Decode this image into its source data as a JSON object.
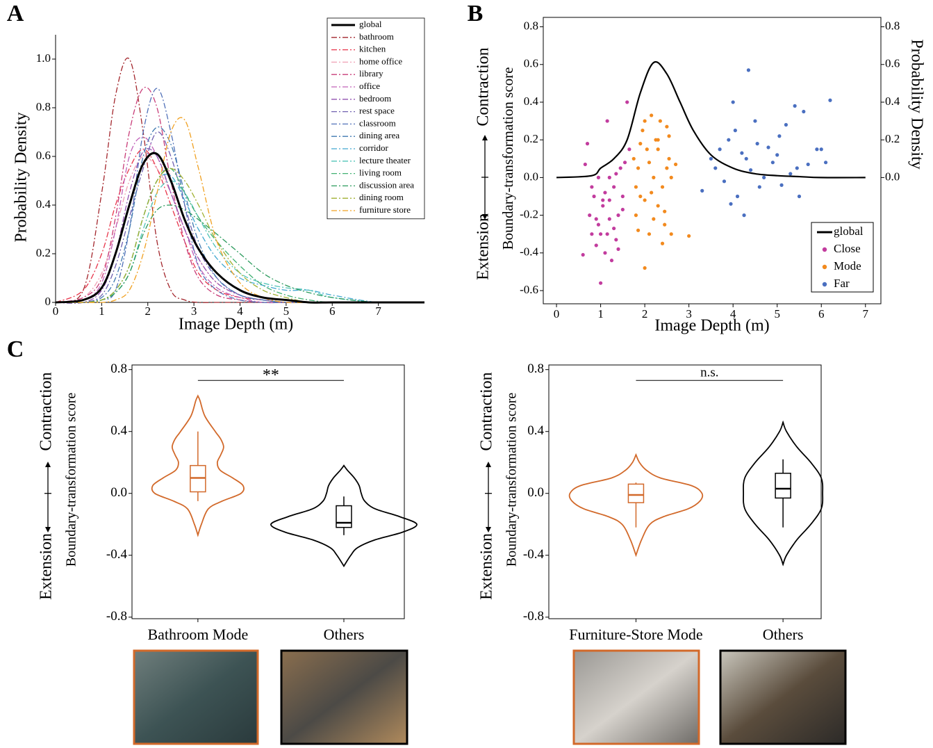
{
  "chart_data": [
    {
      "type": "line",
      "panel_label": "A",
      "xlabel": "Image Depth (m)",
      "ylabel": "Probability Density",
      "xlim": [
        0,
        8
      ],
      "ylim": [
        0,
        1.1
      ],
      "xticks": [
        0,
        1,
        2,
        3,
        4,
        5,
        6,
        7
      ],
      "yticks": [
        0,
        0.2,
        0.4,
        0.6,
        0.8,
        {
          "value": 1,
          "label": "1.0"
        }
      ],
      "legend": "upper right",
      "x": [
        0,
        0.6,
        1,
        1.3,
        1.6,
        1.9,
        2.2,
        2.5,
        2.8,
        3.1,
        3.5,
        4,
        4.5,
        5,
        5.5,
        6,
        7,
        8
      ],
      "series": [
        {
          "name": "global",
          "color": "#000000",
          "style": "solid",
          "values": [
            0,
            0.01,
            0.06,
            0.2,
            0.4,
            0.57,
            0.61,
            0.5,
            0.34,
            0.22,
            0.12,
            0.05,
            0.02,
            0.01,
            0,
            0,
            0,
            0
          ]
        },
        {
          "name": "bathroom",
          "color": "#a3262c",
          "style": "dashdot",
          "values": [
            0,
            0.05,
            0.45,
            0.85,
            1.0,
            0.7,
            0.25,
            0.05,
            0.01,
            0,
            0,
            0,
            0,
            0,
            0,
            0,
            0,
            0
          ]
        },
        {
          "name": "kitchen",
          "color": "#e8344a",
          "style": "dashdot",
          "values": [
            0,
            0.05,
            0.2,
            0.4,
            0.55,
            0.63,
            0.55,
            0.4,
            0.25,
            0.12,
            0.05,
            0.02,
            0.01,
            0,
            0,
            0,
            0,
            0
          ]
        },
        {
          "name": "home office",
          "color": "#f0a0b4",
          "style": "dashdot",
          "values": [
            0,
            0.02,
            0.12,
            0.3,
            0.5,
            0.6,
            0.55,
            0.45,
            0.3,
            0.18,
            0.08,
            0.03,
            0.01,
            0,
            0,
            0,
            0,
            0
          ]
        },
        {
          "name": "library",
          "color": "#c83c78",
          "style": "dashdot",
          "values": [
            0,
            0.02,
            0.1,
            0.35,
            0.7,
            0.88,
            0.8,
            0.5,
            0.25,
            0.1,
            0.03,
            0.01,
            0,
            0,
            0,
            0,
            0,
            0
          ]
        },
        {
          "name": "office",
          "color": "#c060b8",
          "style": "dashdot",
          "values": [
            0,
            0.01,
            0.08,
            0.3,
            0.6,
            0.68,
            0.6,
            0.45,
            0.3,
            0.15,
            0.06,
            0.02,
            0,
            0,
            0,
            0,
            0,
            0
          ]
        },
        {
          "name": "bedroom",
          "color": "#9050b0",
          "style": "dashdot",
          "values": [
            0,
            0,
            0.05,
            0.2,
            0.45,
            0.62,
            0.6,
            0.45,
            0.3,
            0.18,
            0.08,
            0.03,
            0.01,
            0,
            0,
            0,
            0,
            0
          ]
        },
        {
          "name": "rest space",
          "color": "#7060b0",
          "style": "dashdot",
          "values": [
            0,
            0,
            0.03,
            0.15,
            0.35,
            0.55,
            0.7,
            0.6,
            0.4,
            0.22,
            0.1,
            0.03,
            0.01,
            0,
            0,
            0,
            0,
            0
          ]
        },
        {
          "name": "classroom",
          "color": "#5070b8",
          "style": "dashdot",
          "values": [
            0,
            0,
            0.01,
            0.05,
            0.3,
            0.7,
            0.88,
            0.7,
            0.4,
            0.15,
            0.05,
            0.01,
            0,
            0,
            0,
            0,
            0,
            0
          ]
        },
        {
          "name": "dining area",
          "color": "#3f78b0",
          "style": "dashdot",
          "values": [
            0,
            0,
            0.02,
            0.1,
            0.3,
            0.6,
            0.72,
            0.65,
            0.45,
            0.25,
            0.1,
            0.03,
            0.01,
            0,
            0,
            0,
            0,
            0
          ]
        },
        {
          "name": "corridor",
          "color": "#40a8d0",
          "style": "dashdot",
          "values": [
            0,
            0,
            0.01,
            0.05,
            0.15,
            0.35,
            0.5,
            0.52,
            0.42,
            0.3,
            0.18,
            0.1,
            0.07,
            0.05,
            0.05,
            0.03,
            0,
            0
          ]
        },
        {
          "name": "lecture theater",
          "color": "#50c4b8",
          "style": "dashdot",
          "values": [
            0,
            0,
            0.01,
            0.04,
            0.12,
            0.3,
            0.45,
            0.5,
            0.45,
            0.35,
            0.22,
            0.12,
            0.08,
            0.06,
            0.05,
            0.02,
            0,
            0
          ]
        },
        {
          "name": "living room",
          "color": "#40b070",
          "style": "dashdot",
          "values": [
            0,
            0,
            0.01,
            0.05,
            0.15,
            0.35,
            0.5,
            0.55,
            0.45,
            0.35,
            0.25,
            0.15,
            0.07,
            0.03,
            0.01,
            0,
            0,
            0
          ]
        },
        {
          "name": "discussion area",
          "color": "#2a9a5c",
          "style": "dashdot",
          "values": [
            0,
            0,
            0.01,
            0.04,
            0.12,
            0.28,
            0.38,
            0.4,
            0.38,
            0.34,
            0.28,
            0.2,
            0.12,
            0.07,
            0.04,
            0.02,
            0,
            0
          ]
        },
        {
          "name": "dining room",
          "color": "#a0b030",
          "style": "dashdot",
          "values": [
            0,
            0,
            0.01,
            0.05,
            0.15,
            0.35,
            0.5,
            0.55,
            0.5,
            0.4,
            0.25,
            0.12,
            0.05,
            0.02,
            0,
            0,
            0,
            0
          ]
        },
        {
          "name": "furniture store",
          "color": "#f0a020",
          "style": "dashdot",
          "values": [
            0,
            0,
            0,
            0.01,
            0.05,
            0.2,
            0.45,
            0.7,
            0.75,
            0.55,
            0.25,
            0.08,
            0.02,
            0,
            0,
            0,
            0,
            0
          ]
        }
      ]
    },
    {
      "type": "scatter",
      "panel_label": "B",
      "xlabel": "Image Depth (m)",
      "ylabel": "Boundary-transformation score",
      "upper_label": "Contraction",
      "lower_label": "Extension",
      "y2label": "Probability Density",
      "xlim": [
        -0.3,
        7.35
      ],
      "ylim": [
        -0.67,
        0.85
      ],
      "y2lim": [
        -0.67,
        0.85
      ],
      "xticks": [
        0,
        1,
        2,
        3,
        4,
        5,
        6,
        7
      ],
      "yticks": [
        -0.6,
        -0.4,
        -0.2,
        {
          "value": 0,
          "label": "0.0"
        },
        0.2,
        0.4,
        0.6,
        0.8
      ],
      "y2ticks": [
        {
          "value": 0,
          "label": "0.0"
        },
        0.2,
        0.4,
        0.6,
        0.8
      ],
      "legend": "lower right",
      "series": [
        {
          "name": "global",
          "color": "#000000",
          "kind": "line",
          "axis": "y2",
          "x": [
            0,
            0.8,
            1,
            1.3,
            1.6,
            1.9,
            2.2,
            2.5,
            2.8,
            3.1,
            3.5,
            4,
            4.5,
            5,
            5.5,
            6,
            7
          ],
          "values": [
            0,
            0.01,
            0.05,
            0.1,
            0.2,
            0.45,
            0.61,
            0.55,
            0.4,
            0.25,
            0.12,
            0.05,
            0.02,
            0.01,
            0.005,
            0,
            0
          ]
        },
        {
          "name": "Close",
          "color": "#c23c9e",
          "kind": "points",
          "x": [
            0.6,
            0.7,
            0.75,
            0.8,
            0.85,
            0.9,
            0.95,
            1.0,
            1.05,
            1.1,
            1.15,
            1.2,
            1.25,
            1.3,
            1.35,
            1.4,
            1.45,
            1.5,
            1.55,
            1.6,
            0.65,
            0.8,
            0.9,
            1.0,
            1.1,
            1.2,
            1.3,
            1.4,
            1.5,
            1.65,
            1.2,
            1.35,
            0.95,
            1.05,
            1.15
          ],
          "values": [
            -0.41,
            0.18,
            -0.2,
            -0.3,
            -0.1,
            -0.36,
            -0.25,
            -0.56,
            -0.15,
            -0.4,
            0.3,
            -0.12,
            -0.44,
            -0.05,
            -0.33,
            -0.2,
            0.05,
            -0.1,
            0.08,
            0.4,
            0.07,
            -0.05,
            -0.22,
            -0.3,
            -0.08,
            0.0,
            -0.27,
            -0.38,
            -0.17,
            0.15,
            -0.22,
            0.02,
            0.0,
            -0.12,
            -0.3
          ]
        },
        {
          "name": "Mode",
          "color": "#f28a1e",
          "kind": "points",
          "x": [
            1.75,
            1.8,
            1.85,
            1.9,
            1.95,
            2.0,
            2.05,
            2.1,
            2.15,
            2.2,
            2.25,
            2.3,
            2.35,
            2.4,
            2.45,
            2.5,
            2.55,
            2.6,
            1.8,
            1.9,
            2.0,
            2.1,
            2.2,
            2.3,
            2.4,
            2.5,
            2.6,
            1.85,
            2.0,
            2.15,
            2.3,
            2.45,
            2.55,
            2.7,
            3.0
          ],
          "values": [
            0.1,
            -0.2,
            0.05,
            -0.1,
            0.25,
            -0.48,
            0.15,
            -0.3,
            0.33,
            0.0,
            0.2,
            -0.15,
            0.3,
            -0.05,
            -0.25,
            0.27,
            0.1,
            -0.3,
            -0.05,
            0.18,
            -0.12,
            0.08,
            -0.22,
            0.2,
            -0.35,
            0.05,
            0.0,
            -0.28,
            0.3,
            -0.08,
            0.15,
            -0.18,
            0.22,
            0.07,
            -0.31
          ]
        },
        {
          "name": "Far",
          "color": "#4a6fc0",
          "kind": "points",
          "x": [
            3.3,
            3.5,
            3.6,
            3.7,
            3.8,
            3.9,
            4.0,
            4.05,
            4.1,
            4.2,
            4.3,
            4.35,
            4.4,
            4.5,
            4.6,
            4.7,
            4.8,
            4.9,
            5.0,
            5.1,
            5.2,
            5.3,
            5.4,
            5.5,
            5.6,
            5.7,
            5.9,
            6.0,
            6.2,
            6.1,
            4.25,
            4.55,
            3.95,
            5.05,
            5.45
          ],
          "values": [
            -0.07,
            0.1,
            0.05,
            0.15,
            -0.02,
            0.2,
            0.4,
            0.25,
            -0.1,
            0.13,
            0.1,
            0.57,
            0.04,
            0.3,
            -0.05,
            0.0,
            0.16,
            0.08,
            0.12,
            -0.04,
            0.28,
            0.02,
            0.38,
            -0.1,
            0.35,
            0.07,
            0.15,
            0.15,
            0.41,
            0.08,
            -0.2,
            0.18,
            -0.14,
            0.22,
            0.05
          ]
        }
      ]
    },
    {
      "type": "violin",
      "panel_label": "C",
      "ylabel": "Boundary-transformation score",
      "upper_label": "Contraction",
      "lower_label": "Extension",
      "ylim": [
        -0.81,
        0.83
      ],
      "yticks": [
        -0.8,
        -0.4,
        {
          "value": 0,
          "label": "0.0"
        },
        0.4,
        0.8
      ],
      "categories": [
        "Bathroom Mode",
        "Others"
      ],
      "significance": "**",
      "violins": [
        {
          "color": "#d2692a",
          "levels": [
            -0.27,
            -0.2,
            -0.1,
            -0.05,
            0,
            0.05,
            0.1,
            0.15,
            0.2,
            0.25,
            0.3,
            0.35,
            0.4,
            0.5,
            0.6,
            0.63
          ],
          "density": [
            0,
            0.05,
            0.15,
            0.35,
            0.62,
            0.65,
            0.5,
            0.32,
            0.28,
            0.33,
            0.37,
            0.33,
            0.25,
            0.1,
            0.03,
            0
          ],
          "box": {
            "whisker_low": -0.05,
            "q1": 0.01,
            "median": 0.1,
            "q3": 0.18,
            "whisker_high": 0.4
          }
        },
        {
          "color": "#000000",
          "levels": [
            -0.47,
            -0.4,
            -0.35,
            -0.3,
            -0.25,
            -0.2,
            -0.15,
            -0.1,
            -0.05,
            0,
            0.05,
            0.1,
            0.15,
            0.18
          ],
          "density": [
            0,
            0.1,
            0.2,
            0.45,
            0.85,
            1.05,
            0.8,
            0.45,
            0.3,
            0.25,
            0.22,
            0.15,
            0.05,
            0
          ],
          "box": {
            "whisker_low": -0.27,
            "q1": -0.22,
            "median": -0.19,
            "q3": -0.08,
            "whisker_high": -0.02
          }
        }
      ]
    },
    {
      "type": "violin",
      "ylabel": "Boundary-transformation score",
      "upper_label": "Contraction",
      "lower_label": "Extension",
      "ylim": [
        -0.81,
        0.83
      ],
      "yticks": [
        -0.8,
        -0.4,
        {
          "value": 0,
          "label": "0.0"
        },
        0.4,
        0.8
      ],
      "categories": [
        "Furniture-Store Mode",
        "Others"
      ],
      "significance": "n.s.",
      "violins": [
        {
          "color": "#d2692a",
          "levels": [
            -0.4,
            -0.3,
            -0.2,
            -0.15,
            -0.1,
            -0.05,
            0,
            0.05,
            0.1,
            0.15,
            0.2,
            0.25
          ],
          "density": [
            0,
            0.08,
            0.2,
            0.4,
            0.75,
            0.92,
            0.95,
            0.8,
            0.35,
            0.15,
            0.05,
            0
          ],
          "box": {
            "whisker_low": -0.22,
            "q1": -0.06,
            "median": -0.01,
            "q3": 0.06,
            "whisker_high": 0.07
          }
        },
        {
          "color": "#000000",
          "levels": [
            -0.46,
            -0.4,
            -0.3,
            -0.2,
            -0.1,
            0,
            0.1,
            0.2,
            0.3,
            0.4,
            0.46
          ],
          "density": [
            0,
            0.05,
            0.2,
            0.4,
            0.55,
            0.57,
            0.55,
            0.4,
            0.2,
            0.05,
            0
          ],
          "box": {
            "whisker_low": -0.22,
            "q1": -0.03,
            "median": 0.03,
            "q3": 0.13,
            "whisker_high": 0.22
          }
        }
      ]
    }
  ]
}
